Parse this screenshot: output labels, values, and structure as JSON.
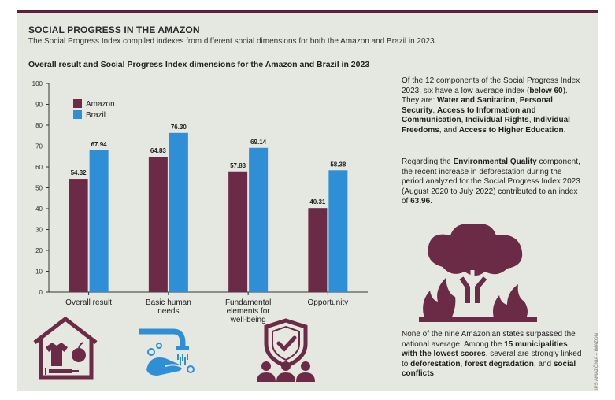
{
  "title": "SOCIAL PROGRESS IN THE AMAZON",
  "subtitle": "The Social Progress Index compiled indexes from different social dimensions for both the Amazon and Brazil in 2023.",
  "chart_title": "Overall result and Social Progress Index dimensions for the Amazon and Brazil in 2023",
  "chart_data": {
    "type": "bar",
    "title": "Overall result and Social Progress Index dimensions for the Amazon and Brazil in 2023",
    "categories": [
      "Overall result",
      "Basic human needs",
      "Fundamental elements for well-being",
      "Opportunity"
    ],
    "category_lines": [
      [
        "Overall result"
      ],
      [
        "Basic human",
        "needs"
      ],
      [
        "Fundamental",
        "elements for",
        "well-being"
      ],
      [
        "Opportunity"
      ]
    ],
    "series": [
      {
        "name": "Amazon",
        "values": [
          54.32,
          64.83,
          57.83,
          40.31
        ],
        "color": "#6b2a45"
      },
      {
        "name": "Brazil",
        "values": [
          67.94,
          76.3,
          69.14,
          58.38
        ],
        "color": "#2e8fd6"
      }
    ],
    "ylim": [
      0,
      100
    ],
    "yticks": [
      0,
      10,
      20,
      30,
      40,
      50,
      60,
      70,
      80,
      90,
      100
    ],
    "legend_position": "top-left",
    "grid": false
  },
  "side_text": {
    "p1": [
      {
        "t": "Of the 12 components of the Social Progress Index 2023, six have a low average index (",
        "b": false
      },
      {
        "t": "below 60",
        "b": true
      },
      {
        "t": "). They are: ",
        "b": false
      },
      {
        "t": "Water and Sanitation",
        "b": true
      },
      {
        "t": ", ",
        "b": false
      },
      {
        "t": "Personal Security",
        "b": true
      },
      {
        "t": ", ",
        "b": false
      },
      {
        "t": "Access to Information and Communication",
        "b": true
      },
      {
        "t": ", ",
        "b": false
      },
      {
        "t": "Individual Rights",
        "b": true
      },
      {
        "t": ", ",
        "b": false
      },
      {
        "t": "Individual Freedoms",
        "b": true
      },
      {
        "t": ", and ",
        "b": false
      },
      {
        "t": "Access to Higher Education",
        "b": true
      },
      {
        "t": ".",
        "b": false
      }
    ],
    "p2": [
      {
        "t": "Regarding the ",
        "b": false
      },
      {
        "t": "Environmental Quality",
        "b": true
      },
      {
        "t": " component, the recent increase in deforestation during the period analyzed for the Social Progress Index 2023 (August 2020 to July 2022) contributed to an index of ",
        "b": false
      },
      {
        "t": "63.96",
        "b": true
      },
      {
        "t": ".",
        "b": false
      }
    ],
    "p3": [
      {
        "t": "None of the nine Amazonian states surpassed the national average. Among the ",
        "b": false
      },
      {
        "t": "15 municipalities with the lowest scores",
        "b": true
      },
      {
        "t": ", several are strongly linked to ",
        "b": false
      },
      {
        "t": "deforestation",
        "b": true
      },
      {
        "t": ", ",
        "b": false
      },
      {
        "t": "forest degradation",
        "b": true
      },
      {
        "t": ", and ",
        "b": false
      },
      {
        "t": "social conflicts",
        "b": true
      },
      {
        "t": ".",
        "b": false
      }
    ]
  },
  "credit": "IPS AMAZÔNIA – IMAZON",
  "icons": [
    "house-basic-needs-icon",
    "handwashing-icon",
    "shield-people-icon",
    "burning-tree-icon"
  ],
  "colors": {
    "purple": "#6b2a45",
    "blue": "#2e8fd6",
    "background": "#e4e8e0"
  }
}
